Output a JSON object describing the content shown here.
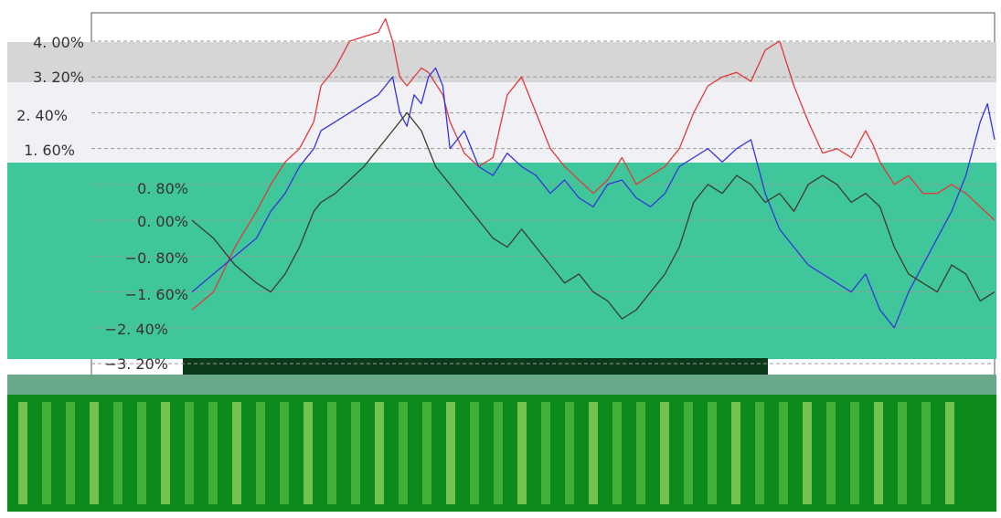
{
  "colors": {
    "red": "#e03a3a",
    "blue": "#3636d6",
    "dark": "#3b3b2a",
    "teal_panel": "#3fc79b",
    "lavender_panel": "#f1f0f5",
    "grey_band": "#d6d6d6",
    "green_block": "#0c8a1c"
  },
  "chart_data": {
    "type": "line",
    "title": "",
    "xlabel": "",
    "ylabel": "",
    "ylim": [
      -3.2,
      4.8
    ],
    "yticks": [
      4.0,
      3.2,
      2.4,
      1.6,
      0.8,
      0.0,
      -0.8,
      -1.6,
      -2.4,
      -3.2
    ],
    "tick_labels": {
      "t400": "4. 00%",
      "t320": "3. 20%",
      "t240": "2. 40%",
      "t160": "1. 60%",
      "t080": "0. 80%",
      "t000": "0. 00%",
      "tm080": "−0. 80%",
      "tm160": "−1. 60%",
      "tm240": "−2. 40%",
      "tm320": "−3. 20%"
    },
    "series": [
      {
        "color": "red",
        "values": [
          [
            0,
            -2.0
          ],
          [
            3,
            -1.6
          ],
          [
            6,
            -0.6
          ],
          [
            9,
            0.2
          ],
          [
            11,
            0.8
          ],
          [
            13,
            1.3
          ],
          [
            15,
            1.6
          ],
          [
            17,
            2.2
          ],
          [
            18,
            3.0
          ],
          [
            20,
            3.4
          ],
          [
            22,
            4.0
          ],
          [
            24,
            4.1
          ],
          [
            26,
            4.2
          ],
          [
            27,
            4.5
          ],
          [
            28,
            4.0
          ],
          [
            29,
            3.2
          ],
          [
            30,
            3.0
          ],
          [
            32,
            3.4
          ],
          [
            33,
            3.3
          ],
          [
            35,
            2.8
          ],
          [
            36,
            2.2
          ],
          [
            38,
            1.5
          ],
          [
            40,
            1.2
          ],
          [
            41,
            1.3
          ],
          [
            42,
            1.4
          ],
          [
            44,
            2.8
          ],
          [
            46,
            3.2
          ],
          [
            48,
            2.4
          ],
          [
            50,
            1.6
          ],
          [
            52,
            1.2
          ],
          [
            54,
            0.9
          ],
          [
            56,
            0.6
          ],
          [
            58,
            0.9
          ],
          [
            60,
            1.4
          ],
          [
            62,
            0.8
          ],
          [
            64,
            1.0
          ],
          [
            66,
            1.2
          ],
          [
            68,
            1.6
          ],
          [
            70,
            2.4
          ],
          [
            72,
            3.0
          ],
          [
            74,
            3.2
          ],
          [
            76,
            3.3
          ],
          [
            78,
            3.1
          ],
          [
            80,
            3.8
          ],
          [
            82,
            4.0
          ],
          [
            84,
            3.0
          ],
          [
            86,
            2.2
          ],
          [
            88,
            1.5
          ],
          [
            90,
            1.6
          ],
          [
            92,
            1.4
          ],
          [
            94,
            2.0
          ],
          [
            95,
            1.7
          ],
          [
            96,
            1.3
          ],
          [
            98,
            0.8
          ],
          [
            100,
            1.0
          ],
          [
            102,
            0.6
          ],
          [
            104,
            0.6
          ],
          [
            106,
            0.8
          ],
          [
            108,
            0.6
          ],
          [
            110,
            0.3
          ],
          [
            112,
            0.0
          ]
        ]
      },
      {
        "color": "blue",
        "values": [
          [
            0,
            -1.6
          ],
          [
            3,
            -1.2
          ],
          [
            6,
            -0.8
          ],
          [
            9,
            -0.4
          ],
          [
            11,
            0.2
          ],
          [
            13,
            0.6
          ],
          [
            15,
            1.2
          ],
          [
            17,
            1.6
          ],
          [
            18,
            2.0
          ],
          [
            20,
            2.2
          ],
          [
            22,
            2.4
          ],
          [
            24,
            2.6
          ],
          [
            26,
            2.8
          ],
          [
            27,
            3.0
          ],
          [
            28,
            3.2
          ],
          [
            29,
            2.4
          ],
          [
            30,
            2.1
          ],
          [
            31,
            2.8
          ],
          [
            32,
            2.6
          ],
          [
            33,
            3.2
          ],
          [
            34,
            3.4
          ],
          [
            35,
            3.0
          ],
          [
            36,
            1.6
          ],
          [
            38,
            2.0
          ],
          [
            40,
            1.2
          ],
          [
            42,
            1.0
          ],
          [
            44,
            1.5
          ],
          [
            46,
            1.2
          ],
          [
            48,
            1.0
          ],
          [
            50,
            0.6
          ],
          [
            52,
            0.9
          ],
          [
            54,
            0.5
          ],
          [
            56,
            0.3
          ],
          [
            58,
            0.8
          ],
          [
            60,
            0.9
          ],
          [
            62,
            0.5
          ],
          [
            64,
            0.3
          ],
          [
            66,
            0.6
          ],
          [
            68,
            1.2
          ],
          [
            70,
            1.4
          ],
          [
            72,
            1.6
          ],
          [
            74,
            1.3
          ],
          [
            76,
            1.6
          ],
          [
            78,
            1.8
          ],
          [
            80,
            0.6
          ],
          [
            82,
            -0.2
          ],
          [
            84,
            -0.6
          ],
          [
            86,
            -1.0
          ],
          [
            88,
            -1.2
          ],
          [
            90,
            -1.4
          ],
          [
            92,
            -1.6
          ],
          [
            94,
            -1.2
          ],
          [
            96,
            -2.0
          ],
          [
            98,
            -2.4
          ],
          [
            100,
            -1.6
          ],
          [
            102,
            -1.0
          ],
          [
            104,
            -0.4
          ],
          [
            106,
            0.2
          ],
          [
            108,
            1.0
          ],
          [
            110,
            2.2
          ],
          [
            111,
            2.6
          ],
          [
            112,
            1.8
          ]
        ]
      },
      {
        "color": "dark",
        "values": [
          [
            0,
            0.0
          ],
          [
            3,
            -0.4
          ],
          [
            6,
            -1.0
          ],
          [
            9,
            -1.4
          ],
          [
            11,
            -1.6
          ],
          [
            13,
            -1.2
          ],
          [
            15,
            -0.6
          ],
          [
            17,
            0.2
          ],
          [
            18,
            0.4
          ],
          [
            20,
            0.6
          ],
          [
            22,
            0.9
          ],
          [
            24,
            1.2
          ],
          [
            26,
            1.6
          ],
          [
            28,
            2.0
          ],
          [
            30,
            2.4
          ],
          [
            32,
            2.0
          ],
          [
            34,
            1.2
          ],
          [
            36,
            0.8
          ],
          [
            38,
            0.4
          ],
          [
            40,
            0.0
          ],
          [
            42,
            -0.4
          ],
          [
            44,
            -0.6
          ],
          [
            46,
            -0.2
          ],
          [
            48,
            -0.6
          ],
          [
            50,
            -1.0
          ],
          [
            52,
            -1.4
          ],
          [
            54,
            -1.2
          ],
          [
            56,
            -1.6
          ],
          [
            58,
            -1.8
          ],
          [
            60,
            -2.2
          ],
          [
            62,
            -2.0
          ],
          [
            64,
            -1.6
          ],
          [
            66,
            -1.2
          ],
          [
            68,
            -0.6
          ],
          [
            70,
            0.4
          ],
          [
            72,
            0.8
          ],
          [
            74,
            0.6
          ],
          [
            76,
            1.0
          ],
          [
            78,
            0.8
          ],
          [
            80,
            0.4
          ],
          [
            82,
            0.6
          ],
          [
            84,
            0.2
          ],
          [
            86,
            0.8
          ],
          [
            88,
            1.0
          ],
          [
            90,
            0.8
          ],
          [
            92,
            0.4
          ],
          [
            94,
            0.6
          ],
          [
            96,
            0.3
          ],
          [
            98,
            -0.6
          ],
          [
            100,
            -1.2
          ],
          [
            102,
            -1.4
          ],
          [
            104,
            -1.6
          ],
          [
            106,
            -1.0
          ],
          [
            108,
            -1.2
          ],
          [
            110,
            -1.8
          ],
          [
            112,
            -1.6
          ]
        ]
      }
    ]
  }
}
